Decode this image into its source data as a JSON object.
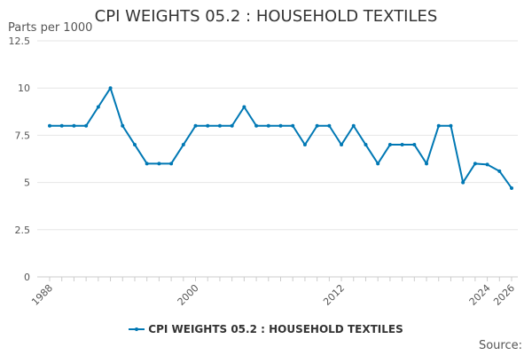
{
  "chart": {
    "title": "CPI WEIGHTS 05.2 : HOUSEHOLD TEXTILES",
    "y_unit_label": "Parts per 1000",
    "source_label": "Source:"
  },
  "chart_data": {
    "type": "line",
    "title": "CPI WEIGHTS 05.2 : HOUSEHOLD TEXTILES",
    "ylabel": "Parts per 1000",
    "xlabel": "",
    "ylim": [
      0,
      12.5
    ],
    "y_ticks": [
      "0",
      "2.5",
      "5",
      "7.5",
      "10",
      "12.5"
    ],
    "y_tick_values": [
      0,
      2.5,
      5,
      7.5,
      10,
      12.5
    ],
    "xlim": [
      1988,
      2026
    ],
    "x_ticks": [
      "1988",
      "2000",
      "2012",
      "2024",
      "2026"
    ],
    "x_tick_values": [
      1988,
      2000,
      2012,
      2024,
      2026
    ],
    "grid": "horizontal",
    "legend_position": "bottom",
    "color": "#0078b4",
    "series": [
      {
        "name": "CPI WEIGHTS 05.2 : HOUSEHOLD TEXTILES",
        "x": [
          1988,
          1989,
          1990,
          1991,
          1992,
          1993,
          1994,
          1995,
          1996,
          1997,
          1998,
          1999,
          2000,
          2001,
          2002,
          2003,
          2004,
          2005,
          2006,
          2007,
          2008,
          2009,
          2010,
          2011,
          2012,
          2013,
          2014,
          2015,
          2016,
          2017,
          2018,
          2019,
          2020,
          2021,
          2022,
          2023,
          2024,
          2025,
          2026
        ],
        "values": [
          8,
          8,
          8,
          8,
          9,
          10,
          8,
          7,
          6,
          6,
          6,
          7,
          8,
          8,
          8,
          8,
          9,
          8,
          8,
          8,
          8,
          7,
          8,
          8,
          7,
          8,
          7,
          6,
          7,
          7,
          7,
          6,
          8,
          8,
          5,
          6,
          5.95,
          5.6,
          4.7
        ]
      }
    ]
  }
}
